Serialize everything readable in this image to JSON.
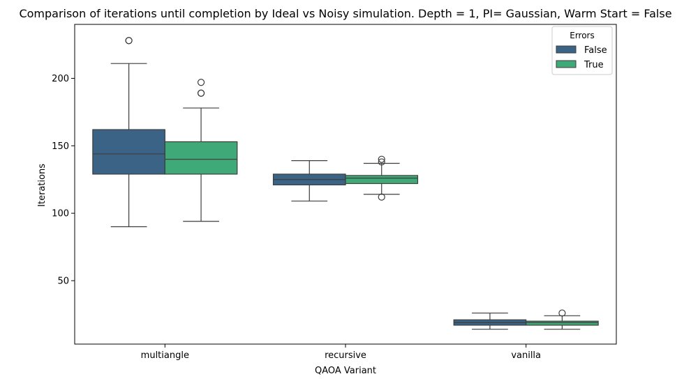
{
  "chart_data": {
    "type": "box",
    "title": "Comparison of iterations until completion by Ideal vs Noisy simulation. Depth = 1, PI= Gaussian, Warm Start = False",
    "xlabel": "QAOA Variant",
    "ylabel": "Iterations",
    "categories": [
      "multiangle",
      "recursive",
      "vanilla"
    ],
    "ylim": [
      3,
      240
    ],
    "yticks": [
      50,
      100,
      150,
      200
    ],
    "grid": false,
    "legend": {
      "title": "Errors",
      "placement": "top-right"
    },
    "series": [
      {
        "name": "False",
        "color": "#3b6386",
        "boxes": [
          {
            "whislo": 90,
            "q1": 129,
            "med": 144,
            "q3": 162,
            "whishi": 211,
            "fliers": [
              228,
              228
            ]
          },
          {
            "whislo": 109,
            "q1": 121,
            "med": 125,
            "q3": 129,
            "whishi": 139,
            "fliers": []
          },
          {
            "whislo": 14,
            "q1": 17,
            "med": 19,
            "q3": 21,
            "whishi": 26,
            "fliers": []
          }
        ]
      },
      {
        "name": "True",
        "color": "#40a978",
        "boxes": [
          {
            "whislo": 94,
            "q1": 129,
            "med": 140,
            "q3": 153,
            "whishi": 178,
            "fliers": [
              189,
              189,
              197
            ]
          },
          {
            "whislo": 114,
            "q1": 122,
            "med": 126,
            "q3": 128,
            "whishi": 137,
            "fliers": [
              112,
              138,
              140
            ]
          },
          {
            "whislo": 14,
            "q1": 17,
            "med": 19,
            "q3": 20,
            "whishi": 24,
            "fliers": [
              26
            ]
          }
        ]
      }
    ]
  }
}
